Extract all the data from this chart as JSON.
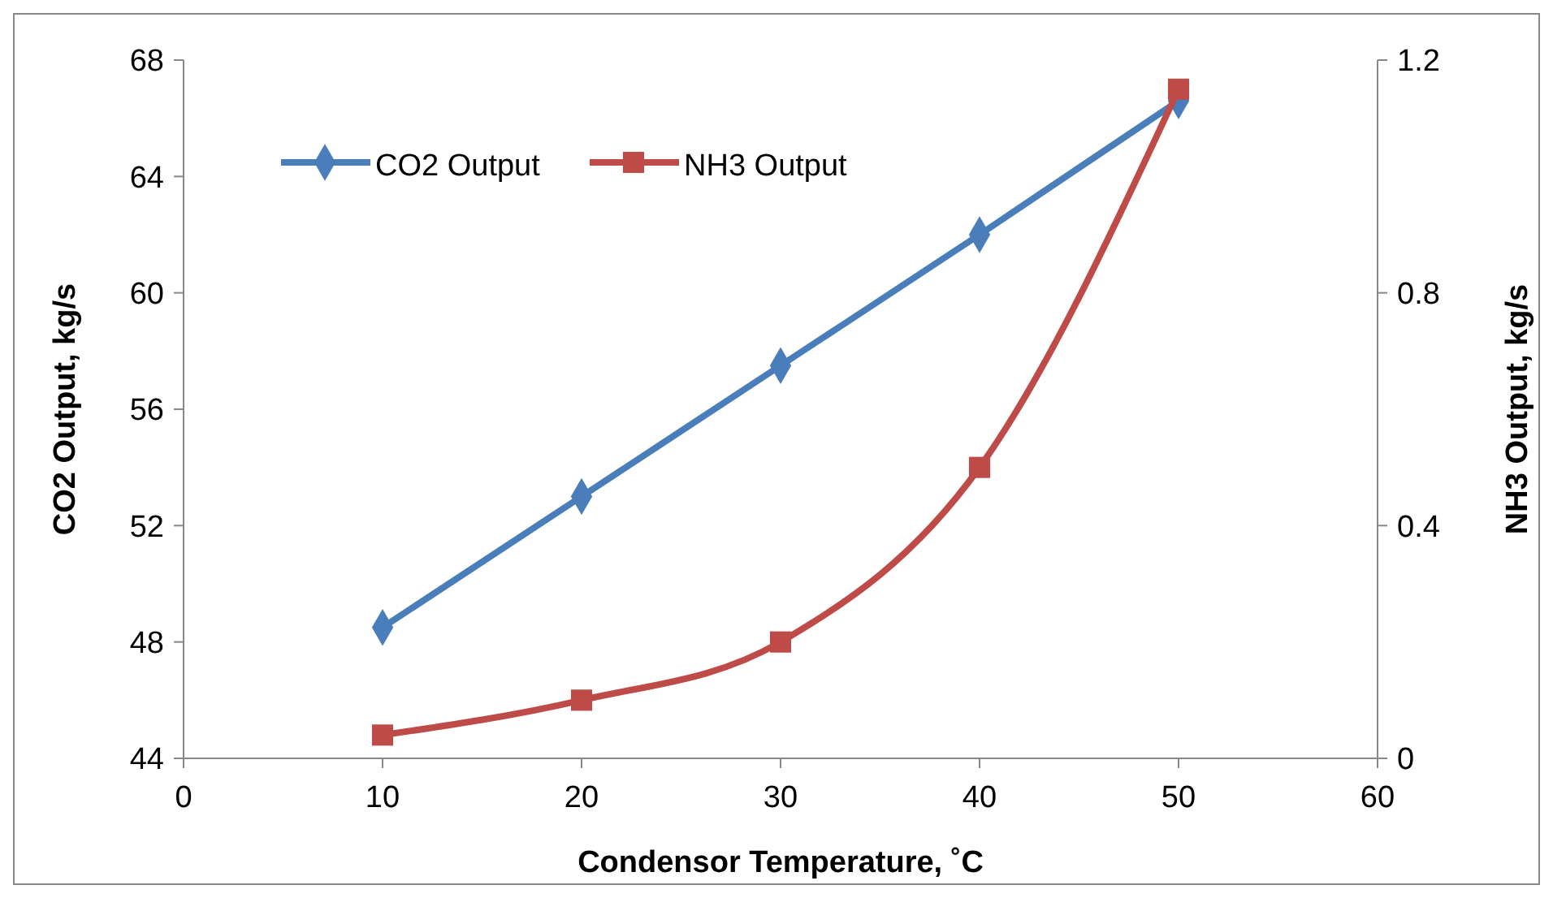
{
  "chart_data": {
    "type": "line",
    "xlabel": "Condensor Temperature, ˚C",
    "ylabel": "CO2 Output, kg/s",
    "y2label": "NH3 Output, kg/s",
    "x": [
      10,
      20,
      30,
      40,
      50
    ],
    "series": [
      {
        "name": "CO2 Output",
        "color": "#4a7ebb",
        "values": [
          48.5,
          53,
          57.5,
          62,
          66.6
        ],
        "marker": "diamond"
      },
      {
        "name": "NH3 Output",
        "color": "#be4b48",
        "values": [
          0.04,
          0.1,
          0.2,
          0.5,
          1.15
        ],
        "marker": "square",
        "axis": "y2"
      }
    ],
    "xlim": [
      0,
      60
    ],
    "xticks": [
      0,
      10,
      20,
      30,
      40,
      50,
      60
    ],
    "ylim": [
      44,
      68
    ],
    "yticks": [
      44,
      48,
      52,
      56,
      60,
      64,
      68
    ],
    "y2lim": [
      0,
      1.2
    ],
    "y2ticks": [
      0,
      0.4,
      0.8,
      1.2
    ],
    "grid": false,
    "legend": "top left",
    "line_style": "solid"
  }
}
